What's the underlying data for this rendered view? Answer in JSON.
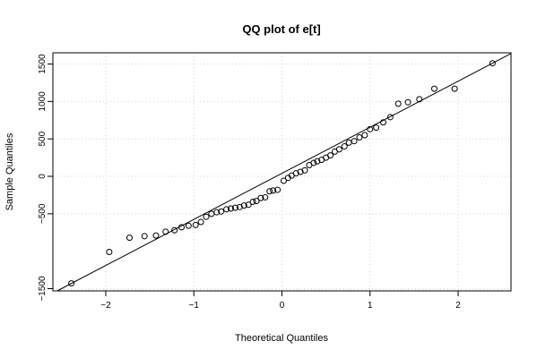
{
  "chart_data": {
    "type": "scatter",
    "title": "QQ plot of e[t]",
    "xlabel": "Theoretical Quantiles",
    "ylabel": "Sample Quantiles",
    "xlim": [
      -2.6,
      2.6
    ],
    "ylim": [
      -1530,
      1650
    ],
    "x_ticks": [
      -2,
      -1,
      0,
      1,
      2
    ],
    "x_tick_labels": [
      "−2",
      "−1",
      "0",
      "1",
      "2"
    ],
    "y_ticks": [
      -1500,
      -500,
      0,
      500,
      1000,
      1500
    ],
    "y_tick_labels": [
      "−1500",
      "−500",
      "0",
      "500",
      "1000",
      "1500"
    ],
    "grid": true,
    "reference_line": {
      "x": [
        -2.6,
        2.6
      ],
      "y": [
        -1560,
        1640
      ]
    },
    "points": {
      "x": [
        -2.39,
        -1.96,
        -1.73,
        -1.56,
        -1.43,
        -1.32,
        -1.22,
        -1.14,
        -1.06,
        -0.98,
        -0.92,
        -0.86,
        -0.8,
        -0.74,
        -0.69,
        -0.63,
        -0.58,
        -0.53,
        -0.48,
        -0.43,
        -0.38,
        -0.33,
        -0.29,
        -0.24,
        -0.19,
        -0.14,
        -0.1,
        -0.05,
        0.02,
        0.07,
        0.11,
        0.16,
        0.21,
        0.26,
        0.31,
        0.36,
        0.4,
        0.45,
        0.5,
        0.55,
        0.6,
        0.65,
        0.71,
        0.76,
        0.82,
        0.88,
        0.94,
        1.0,
        1.07,
        1.15,
        1.23,
        1.32,
        1.43,
        1.56,
        1.73,
        1.96,
        2.39
      ],
      "y": [
        -1430,
        -1010,
        -820,
        -800,
        -790,
        -740,
        -720,
        -680,
        -660,
        -650,
        -610,
        -540,
        -500,
        -480,
        -470,
        -440,
        -430,
        -420,
        -410,
        -390,
        -380,
        -340,
        -330,
        -290,
        -280,
        -200,
        -190,
        -180,
        -60,
        -20,
        10,
        40,
        60,
        80,
        150,
        180,
        200,
        220,
        250,
        280,
        330,
        360,
        400,
        450,
        470,
        520,
        550,
        630,
        650,
        720,
        790,
        970,
        990,
        1030,
        1170,
        1170,
        1510
      ]
    }
  }
}
